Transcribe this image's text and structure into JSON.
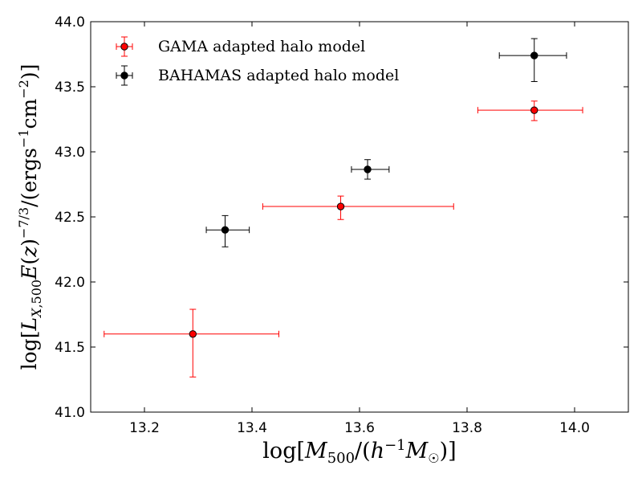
{
  "chart_data": {
    "type": "scatter",
    "title": "",
    "xlabel": "log[M500/(h−1M☉)]",
    "ylabel": "log[LX,500E(z)−7/3/(ergs−1cm−2)]",
    "xlim": [
      13.1,
      14.1
    ],
    "ylim": [
      41.0,
      44.0
    ],
    "xticks": [
      13.2,
      13.4,
      13.6,
      13.8,
      14.0
    ],
    "yticks": [
      41.0,
      41.5,
      42.0,
      42.5,
      43.0,
      43.5,
      44.0
    ],
    "xtick_labels": [
      "13.2",
      "13.4",
      "13.6",
      "13.8",
      "14.0"
    ],
    "ytick_labels": [
      "41.0",
      "41.5",
      "42.0",
      "42.5",
      "43.0",
      "43.5",
      "44.0"
    ],
    "legend_position": "top-left",
    "series": [
      {
        "name": "GAMA adapted halo model",
        "color": "#ff0000",
        "points": [
          {
            "x": 13.29,
            "y": 41.6,
            "xerr": [
              13.125,
              13.45
            ],
            "yerr": [
              41.27,
              41.79
            ]
          },
          {
            "x": 13.565,
            "y": 42.58,
            "xerr": [
              13.42,
              13.775
            ],
            "yerr": [
              42.48,
              42.66
            ]
          },
          {
            "x": 13.925,
            "y": 43.32,
            "xerr": [
              13.82,
              14.015
            ],
            "yerr": [
              43.24,
              43.39
            ]
          }
        ]
      },
      {
        "name": "BAHAMAS adapted halo model",
        "color": "#000000",
        "points": [
          {
            "x": 13.35,
            "y": 42.4,
            "xerr": [
              13.315,
              13.395
            ],
            "yerr": [
              42.27,
              42.51
            ]
          },
          {
            "x": 13.615,
            "y": 42.865,
            "xerr": [
              13.585,
              13.655
            ],
            "yerr": [
              42.79,
              42.94
            ]
          },
          {
            "x": 13.925,
            "y": 43.74,
            "xerr": [
              13.86,
              13.985
            ],
            "yerr": [
              43.54,
              43.87
            ]
          }
        ]
      }
    ]
  }
}
